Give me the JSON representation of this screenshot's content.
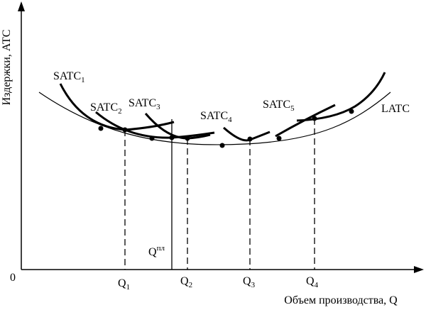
{
  "axes": {
    "y_label": "Издержки, АТС",
    "x_label": "Объем производства, Q",
    "origin": "0"
  },
  "curves": [
    {
      "text": "SATC",
      "sub": "1"
    },
    {
      "text": "SATC",
      "sub": "2"
    },
    {
      "text": "SATC",
      "sub": "3"
    },
    {
      "text": "SATC",
      "sub": "4"
    },
    {
      "text": "SATC",
      "sub": "5"
    },
    {
      "text": "LATC"
    }
  ],
  "quantities": [
    {
      "text": "Q",
      "sub": "1"
    },
    {
      "text": "Q",
      "sub": "2"
    },
    {
      "text": "Q",
      "sub": "3"
    },
    {
      "text": "Q",
      "sub": "4"
    },
    {
      "text": "Q",
      "sup": "пл"
    }
  ]
}
